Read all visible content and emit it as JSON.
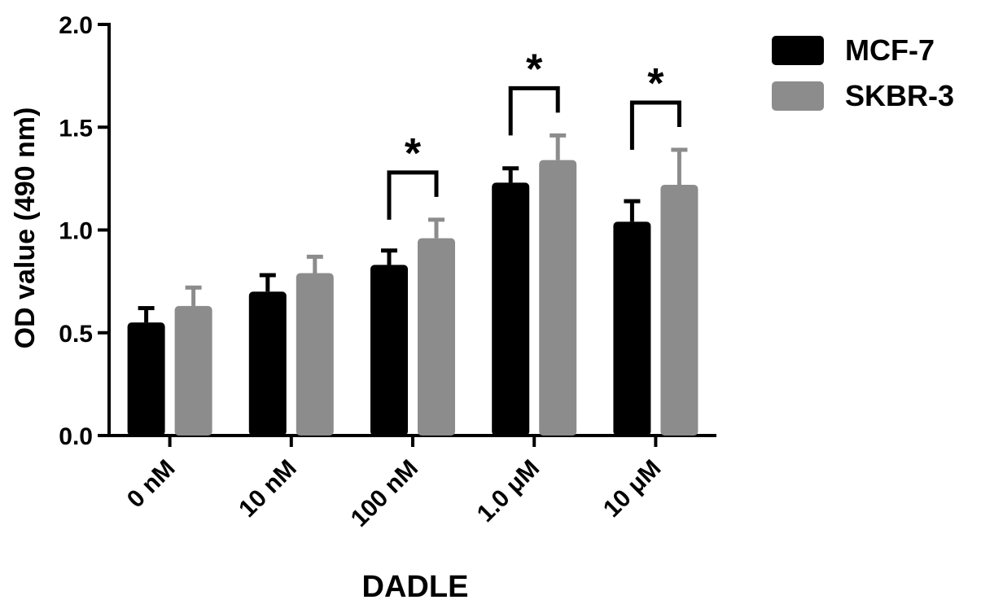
{
  "chart_data": {
    "type": "bar",
    "title": "",
    "xlabel": "DADLE",
    "ylabel": "OD value (490 nm)",
    "ylim": [
      0,
      2.0
    ],
    "y_ticks": [
      "0.0",
      "0.5",
      "1.0",
      "1.5",
      "2.0"
    ],
    "y_tick_values": [
      0,
      0.5,
      1.0,
      1.5,
      2.0
    ],
    "categories": [
      "0 nM",
      "10 nM",
      "100 nM",
      "1.0 μM",
      "10 μM"
    ],
    "series": [
      {
        "name": "MCF-7",
        "color": "#000000",
        "values": [
          0.55,
          0.7,
          0.83,
          1.23,
          1.04
        ],
        "errors": [
          0.07,
          0.08,
          0.07,
          0.07,
          0.1
        ]
      },
      {
        "name": "SKBR-3",
        "color": "#8c8c8c",
        "values": [
          0.63,
          0.79,
          0.96,
          1.34,
          1.22
        ],
        "errors": [
          0.09,
          0.08,
          0.09,
          0.12,
          0.17
        ]
      }
    ],
    "significance": [
      {
        "category_index": 2,
        "label": "*"
      },
      {
        "category_index": 3,
        "label": "*"
      },
      {
        "category_index": 4,
        "label": "*"
      }
    ],
    "legend_position": "top-right",
    "grid": false
  }
}
